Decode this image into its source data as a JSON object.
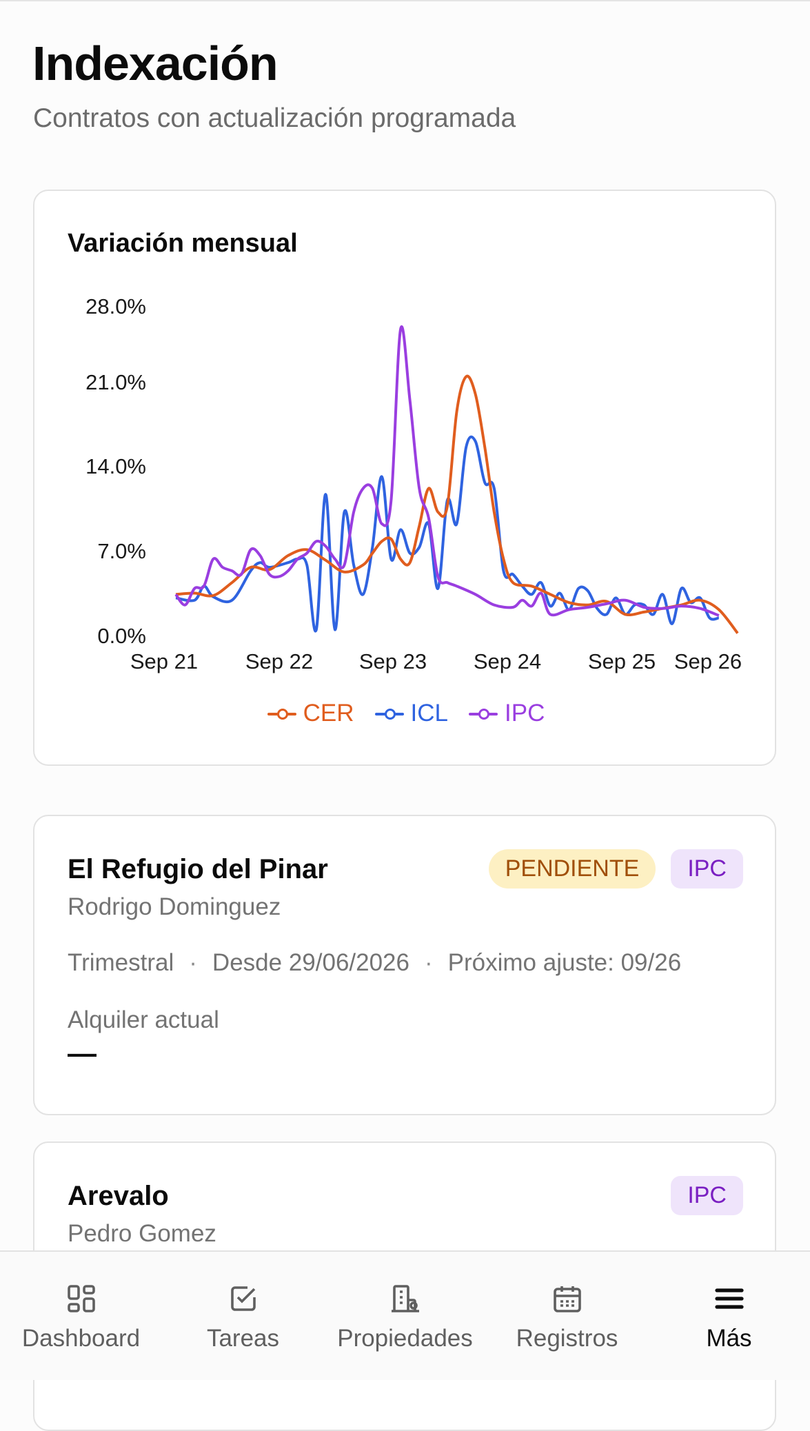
{
  "header": {
    "title": "Indexación",
    "subtitle": "Contratos con actualización programada"
  },
  "chart": {
    "title": "Variación mensual",
    "legend": [
      {
        "name": "CER",
        "color": "#e05d1e"
      },
      {
        "name": "ICL",
        "color": "#2f63e0"
      },
      {
        "name": "IPC",
        "color": "#9a3ee0"
      }
    ]
  },
  "chart_data": {
    "type": "line",
    "title": "Variación mensual",
    "y_ticks": [
      "28.0%",
      "21.0%",
      "14.0%",
      "7.0%",
      "0.0%"
    ],
    "x_ticks": [
      "Sep 21",
      "Sep 22",
      "Sep 23",
      "Sep 24",
      "Sep 25",
      "Sep 26"
    ],
    "ylim": [
      0,
      28
    ],
    "x_unit": "months since Sep 21",
    "xlim": [
      0,
      60
    ],
    "legend_position": "bottom",
    "series": [
      {
        "name": "CER",
        "color": "#e05d1e",
        "points": [
          [
            0,
            3.5
          ],
          [
            2,
            3.6
          ],
          [
            4,
            3.4
          ],
          [
            6,
            4.5
          ],
          [
            8,
            5.8
          ],
          [
            10,
            5.6
          ],
          [
            12,
            6.8
          ],
          [
            14,
            7.3
          ],
          [
            16,
            6.4
          ],
          [
            18,
            5.4
          ],
          [
            20,
            6.0
          ],
          [
            21,
            7.0
          ],
          [
            22,
            8.0
          ],
          [
            23,
            8.2
          ],
          [
            24,
            6.5
          ],
          [
            25,
            6.2
          ],
          [
            26,
            9.3
          ],
          [
            27,
            12.5
          ],
          [
            28,
            10.5
          ],
          [
            29,
            11.0
          ],
          [
            30,
            19.0
          ],
          [
            31,
            22.0
          ],
          [
            32,
            20.5
          ],
          [
            33,
            16.0
          ],
          [
            34,
            10.5
          ],
          [
            35,
            6.5
          ],
          [
            36,
            4.5
          ],
          [
            38,
            4.2
          ],
          [
            40,
            3.5
          ],
          [
            42,
            2.8
          ],
          [
            44,
            2.6
          ],
          [
            46,
            2.9
          ],
          [
            48,
            1.8
          ],
          [
            50,
            2.0
          ],
          [
            52,
            2.3
          ],
          [
            54,
            2.6
          ],
          [
            56,
            3.0
          ],
          [
            58,
            2.2
          ],
          [
            60,
            0.2
          ]
        ]
      },
      {
        "name": "ICL",
        "color": "#2f63e0",
        "points": [
          [
            0,
            3.2
          ],
          [
            2,
            3.0
          ],
          [
            3,
            4.2
          ],
          [
            4,
            3.3
          ],
          [
            6,
            3.0
          ],
          [
            8,
            5.5
          ],
          [
            9,
            6.2
          ],
          [
            10,
            5.8
          ],
          [
            12,
            6.2
          ],
          [
            13,
            6.5
          ],
          [
            14,
            6.0
          ],
          [
            15,
            0.5
          ],
          [
            16,
            12.0
          ],
          [
            17,
            0.5
          ],
          [
            18,
            10.5
          ],
          [
            19,
            6.0
          ],
          [
            20,
            3.5
          ],
          [
            21,
            7.5
          ],
          [
            22,
            13.5
          ],
          [
            23,
            6.5
          ],
          [
            24,
            9.0
          ],
          [
            25,
            7.0
          ],
          [
            26,
            7.5
          ],
          [
            27,
            9.5
          ],
          [
            28,
            4.0
          ],
          [
            29,
            11.5
          ],
          [
            30,
            9.5
          ],
          [
            31,
            16.0
          ],
          [
            32,
            16.5
          ],
          [
            33,
            13.0
          ],
          [
            34,
            12.5
          ],
          [
            35,
            5.5
          ],
          [
            36,
            5.2
          ],
          [
            37,
            4.2
          ],
          [
            38,
            3.5
          ],
          [
            39,
            4.5
          ],
          [
            40,
            2.5
          ],
          [
            41,
            3.6
          ],
          [
            42,
            2.2
          ],
          [
            43,
            4.0
          ],
          [
            44,
            3.8
          ],
          [
            45,
            2.3
          ],
          [
            46,
            1.8
          ],
          [
            47,
            3.2
          ],
          [
            48,
            1.8
          ],
          [
            49,
            2.6
          ],
          [
            50,
            2.6
          ],
          [
            51,
            1.8
          ],
          [
            52,
            3.5
          ],
          [
            53,
            1.0
          ],
          [
            54,
            4.0
          ],
          [
            55,
            2.8
          ],
          [
            56,
            3.2
          ],
          [
            57,
            1.5
          ],
          [
            58,
            1.5
          ]
        ]
      },
      {
        "name": "IPC",
        "color": "#9a3ee0",
        "points": [
          [
            0,
            3.5
          ],
          [
            1,
            2.6
          ],
          [
            2,
            4.0
          ],
          [
            3,
            4.2
          ],
          [
            4,
            6.5
          ],
          [
            5,
            5.8
          ],
          [
            6,
            5.5
          ],
          [
            7,
            5.2
          ],
          [
            8,
            7.3
          ],
          [
            9,
            6.8
          ],
          [
            10,
            5.2
          ],
          [
            11,
            5.0
          ],
          [
            12,
            5.5
          ],
          [
            13,
            6.5
          ],
          [
            14,
            7.0
          ],
          [
            15,
            8.0
          ],
          [
            16,
            7.6
          ],
          [
            17,
            6.5
          ],
          [
            18,
            6.0
          ],
          [
            19,
            10.5
          ],
          [
            20,
            12.5
          ],
          [
            21,
            12.5
          ],
          [
            22,
            9.5
          ],
          [
            23,
            11.5
          ],
          [
            24,
            26.0
          ],
          [
            25,
            20.0
          ],
          [
            26,
            12.5
          ],
          [
            27,
            10.0
          ],
          [
            28,
            5.0
          ],
          [
            29,
            4.5
          ],
          [
            30,
            4.2
          ],
          [
            32,
            3.5
          ],
          [
            34,
            2.6
          ],
          [
            36,
            2.4
          ],
          [
            37,
            3.0
          ],
          [
            38,
            2.5
          ],
          [
            39,
            3.6
          ],
          [
            40,
            1.8
          ],
          [
            42,
            2.2
          ],
          [
            44,
            2.4
          ],
          [
            46,
            2.7
          ],
          [
            48,
            3.0
          ],
          [
            50,
            2.4
          ],
          [
            52,
            2.3
          ],
          [
            54,
            2.5
          ],
          [
            56,
            2.3
          ],
          [
            58,
            1.7
          ]
        ]
      }
    ]
  },
  "contracts": [
    {
      "name": "El Refugio del Pinar",
      "tenant": "Rodrigo Dominguez",
      "status": "PENDIENTE",
      "index": "IPC",
      "frequency": "Trimestral",
      "since": "Desde 29/06/2026",
      "next_adjust": "Próximo ajuste: 09/26",
      "rent_label": "Alquiler actual",
      "rent_value": "—"
    },
    {
      "name": "Arevalo",
      "tenant": "Pedro Gomez",
      "index": "IPC"
    }
  ],
  "nav": {
    "items": [
      {
        "label": "Dashboard",
        "icon": "dashboard-icon"
      },
      {
        "label": "Tareas",
        "icon": "tasks-icon"
      },
      {
        "label": "Propiedades",
        "icon": "building-icon"
      },
      {
        "label": "Registros",
        "icon": "calendar-icon"
      },
      {
        "label": "Más",
        "icon": "menu-icon"
      }
    ],
    "active": "Más"
  }
}
